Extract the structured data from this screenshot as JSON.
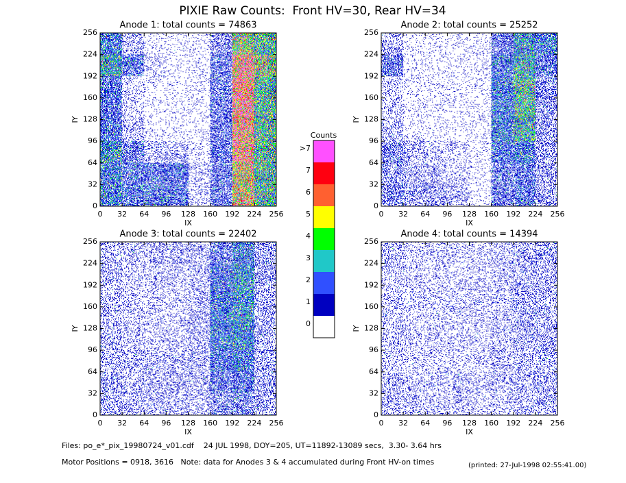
{
  "title": "PIXIE Raw Counts:  Front HV=30, Rear HV=34",
  "chart_data": [
    {
      "type": "heatmap",
      "title": "Anode 1: total counts = 74863",
      "xlabel": "IX",
      "ylabel": "IY",
      "xlim": [
        0,
        256
      ],
      "ylim": [
        0,
        256
      ],
      "xticks": [
        0,
        32,
        64,
        96,
        128,
        160,
        192,
        224,
        256
      ],
      "yticks": [
        0,
        32,
        64,
        96,
        128,
        160,
        192,
        224,
        256
      ],
      "values": [
        [
          1.5,
          0.3,
          0.1,
          0.1,
          0.1,
          0.5,
          4,
          3
        ],
        [
          2.5,
          1,
          0.2,
          0.1,
          0.1,
          0.8,
          6,
          4
        ],
        [
          1.2,
          0.2,
          0.1,
          0.1,
          0.1,
          0.8,
          6,
          3
        ],
        [
          1,
          0.2,
          0.1,
          0.1,
          0.1,
          0.8,
          6,
          3
        ],
        [
          1.2,
          0.3,
          0.1,
          0.1,
          0.1,
          0.8,
          6,
          3
        ],
        [
          2,
          0.8,
          0.3,
          0.3,
          0.1,
          0.8,
          6,
          3
        ],
        [
          1.5,
          1,
          1,
          1,
          0.2,
          0.8,
          5,
          3
        ],
        [
          1.5,
          1.2,
          1.2,
          1,
          0.2,
          0.8,
          5,
          3
        ]
      ]
    },
    {
      "type": "heatmap",
      "title": "Anode 2: total counts = 25252",
      "xlabel": "IX",
      "ylabel": "IY",
      "xlim": [
        0,
        256
      ],
      "ylim": [
        0,
        256
      ],
      "xticks": [
        0,
        32,
        64,
        96,
        128,
        160,
        192,
        224,
        256
      ],
      "yticks": [
        0,
        32,
        64,
        96,
        128,
        160,
        192,
        224,
        256
      ],
      "values": [
        [
          0.3,
          0.1,
          0.1,
          0.1,
          0.1,
          0.8,
          2,
          1.5
        ],
        [
          0.8,
          0.1,
          0.1,
          0.1,
          0.1,
          1.2,
          2.5,
          1
        ],
        [
          0.2,
          0.1,
          0.1,
          0.1,
          0.1,
          1.5,
          3,
          0.6
        ],
        [
          0.2,
          0.1,
          0.1,
          0.1,
          0.1,
          1.5,
          3,
          0.5
        ],
        [
          0.3,
          0.1,
          0.1,
          0.1,
          0.1,
          1.5,
          2.5,
          0.5
        ],
        [
          0.6,
          0.3,
          0.2,
          0.2,
          0.1,
          1.2,
          1.5,
          0.4
        ],
        [
          0.5,
          0.3,
          0.3,
          0.2,
          0.1,
          0.8,
          1,
          0.4
        ],
        [
          0.6,
          0.4,
          0.4,
          0.3,
          0.1,
          0.8,
          1,
          0.4
        ]
      ]
    },
    {
      "type": "heatmap",
      "title": "Anode 3: total counts = 22402",
      "xlabel": "IX",
      "ylabel": "IY",
      "xlim": [
        0,
        256
      ],
      "ylim": [
        0,
        256
      ],
      "xticks": [
        0,
        32,
        64,
        96,
        128,
        160,
        192,
        224,
        256
      ],
      "yticks": [
        0,
        32,
        64,
        96,
        128,
        160,
        192,
        224,
        256
      ],
      "values": [
        [
          0.3,
          0.3,
          0.3,
          0.3,
          0.3,
          0.8,
          1.5,
          0.5
        ],
        [
          0.3,
          0.2,
          0.2,
          0.2,
          0.3,
          1.2,
          2,
          0.5
        ],
        [
          0.3,
          0.2,
          0.2,
          0.2,
          0.3,
          1.5,
          2,
          0.4
        ],
        [
          0.3,
          0.2,
          0.2,
          0.2,
          0.3,
          1.5,
          2,
          0.4
        ],
        [
          0.3,
          0.2,
          0.2,
          0.2,
          0.3,
          1.5,
          1.8,
          0.4
        ],
        [
          0.3,
          0.3,
          0.3,
          0.3,
          0.3,
          1.2,
          1.5,
          0.4
        ],
        [
          0.4,
          0.3,
          0.3,
          0.3,
          0.3,
          0.8,
          1,
          0.4
        ],
        [
          0.4,
          0.3,
          0.3,
          0.3,
          0.3,
          0.6,
          0.8,
          0.4
        ]
      ]
    },
    {
      "type": "heatmap",
      "title": "Anode 4: total counts = 14394",
      "xlabel": "IX",
      "ylabel": "IY",
      "xlim": [
        0,
        256
      ],
      "ylim": [
        0,
        256
      ],
      "xticks": [
        0,
        32,
        64,
        96,
        128,
        160,
        192,
        224,
        256
      ],
      "yticks": [
        0,
        32,
        64,
        96,
        128,
        160,
        192,
        224,
        256
      ],
      "values": [
        [
          0.3,
          0.2,
          0.2,
          0.2,
          0.2,
          0.25,
          0.35,
          0.4
        ],
        [
          0.25,
          0.2,
          0.2,
          0.2,
          0.2,
          0.25,
          0.35,
          0.35
        ],
        [
          0.25,
          0.2,
          0.2,
          0.2,
          0.2,
          0.25,
          0.35,
          0.35
        ],
        [
          0.25,
          0.2,
          0.2,
          0.2,
          0.2,
          0.25,
          0.35,
          0.35
        ],
        [
          0.25,
          0.2,
          0.2,
          0.2,
          0.2,
          0.25,
          0.35,
          0.35
        ],
        [
          0.25,
          0.2,
          0.2,
          0.2,
          0.2,
          0.25,
          0.3,
          0.35
        ],
        [
          0.3,
          0.25,
          0.25,
          0.25,
          0.2,
          0.25,
          0.3,
          0.35
        ],
        [
          0.3,
          0.25,
          0.25,
          0.25,
          0.2,
          0.25,
          0.3,
          0.35
        ]
      ]
    }
  ],
  "colorbar": {
    "title": "Counts",
    "levels": [
      0,
      1,
      2,
      3,
      4,
      5,
      6,
      7,
      {
        "value": 8,
        "label": ">7"
      }
    ],
    "colors": [
      "#ffffff",
      "#0000c0",
      "#3050ff",
      "#20c8c8",
      "#00ff00",
      "#ffff00",
      "#ff6030",
      "#ff0010",
      "#ff50ff"
    ]
  },
  "footer": {
    "files": "Files: po_e*_pix_19980724_v01.cdf    24 JUL 1998, DOY=205, UT=11892-13089 secs,  3.30- 3.64 hrs",
    "motor": "Motor Positions = 0918, 3616   Note: data for Anodes 3 & 4 accumulated during Front HV-on times",
    "printed": "(printed: 27-Jul-1998 02:55:41.00)"
  }
}
